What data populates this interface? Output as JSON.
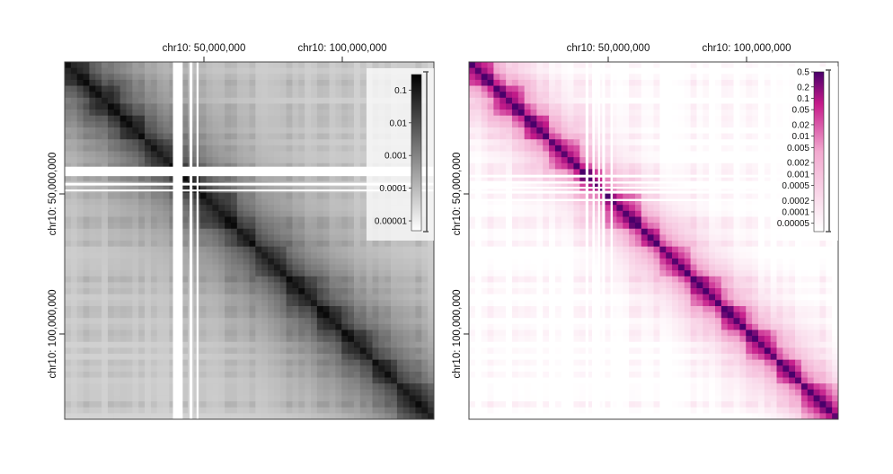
{
  "figure": {
    "panels": [
      {
        "chart_data": {
          "type": "heatmap",
          "title": "",
          "chromosome": "chr10",
          "x_ticks": [
            "chr10: 50,000,000",
            "chr10: 100,000,000"
          ],
          "y_ticks": [
            "chr10: 50,000,000",
            "chr10: 100,000,000"
          ],
          "x_tick_positions_bp": [
            50000000,
            100000000
          ],
          "axis_range_bp": [
            0,
            133000000
          ],
          "colorscale": {
            "name": "greys",
            "low": "#ffffff",
            "high": "#000000",
            "scale": "log"
          },
          "colorbar_ticks": [
            "0.1",
            "0.01",
            "0.001",
            "0.0001",
            "0.00001"
          ],
          "colorbar_values": [
            0.1,
            0.01,
            0.001,
            0.0001,
            1e-05
          ],
          "colorbar_range": [
            5e-06,
            0.3
          ],
          "masked_bins_bp": [
            [
              39000000,
              42500000
            ],
            [
              45000000,
              46000000
            ],
            [
              47500000,
              48200000
            ]
          ]
        }
      },
      {
        "chart_data": {
          "type": "heatmap",
          "title": "",
          "chromosome": "chr10",
          "x_ticks": [
            "chr10: 50,000,000",
            "chr10: 100,000,000"
          ],
          "y_ticks": [
            "chr10: 50,000,000",
            "chr10: 100,000,000"
          ],
          "x_tick_positions_bp": [
            50000000,
            100000000
          ],
          "axis_range_bp": [
            0,
            133000000
          ],
          "colorscale": {
            "name": "pink-purple",
            "low": "#ffffff",
            "mid": "#e7298a",
            "high": "#49006a",
            "scale": "log"
          },
          "colorbar_ticks": [
            "0.5",
            "0.2",
            "0.1",
            "0.05",
            "0.02",
            "0.01",
            "0.005",
            "0.002",
            "0.001",
            "0.0005",
            "0.0002",
            "0.0001",
            "0.00005"
          ],
          "colorbar_values": [
            0.5,
            0.2,
            0.1,
            0.05,
            0.02,
            0.01,
            0.005,
            0.002,
            0.001,
            0.0005,
            0.0002,
            0.0001,
            5e-05
          ],
          "colorbar_range": [
            3e-05,
            0.5
          ],
          "masked_bins_bp": [
            [
              42000000,
              43000000
            ],
            [
              44500000,
              45300000
            ],
            [
              46500000,
              47200000
            ],
            [
              48000000,
              49000000
            ],
            [
              51000000,
              51800000
            ]
          ]
        }
      }
    ]
  }
}
